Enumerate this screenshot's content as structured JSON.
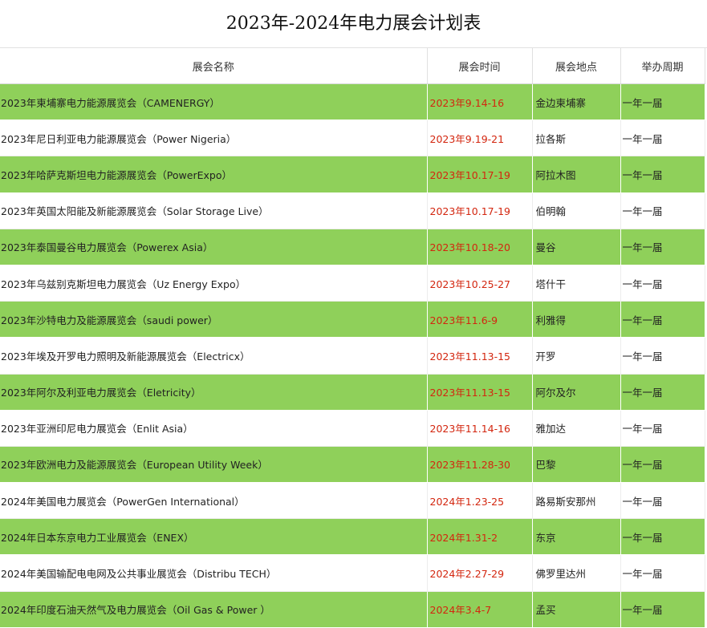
{
  "title": "2023年-2024年电力展会计划表",
  "headers": [
    "展会名称",
    "展会时间",
    "展会地点",
    "举办周期"
  ],
  "colors": {
    "row_green": "#8fd05a",
    "row_white": "#ffffff",
    "date_red": "#d3260f"
  },
  "rows": [
    {
      "name": "2023年柬埔寨电力能源展览会（CAMENERGY）",
      "time": "2023年9.14-16",
      "location": "金边柬埔寨",
      "cycle": "一年一届"
    },
    {
      "name": "2023年尼日利亚电力能源展览会（Power Nigeria）",
      "time": "2023年9.19-21",
      "location": "拉各斯",
      "cycle": "一年一届"
    },
    {
      "name": "2023年哈萨克斯坦电力能源展览会（PowerExpo）",
      "time": "2023年10.17-19",
      "location": "阿拉木图",
      "cycle": "一年一届"
    },
    {
      "name": "2023年英国太阳能及新能源展览会（Solar Storage Live）",
      "time": "2023年10.17-19",
      "location": "伯明翰",
      "cycle": "一年一届"
    },
    {
      "name": "2023年泰国曼谷电力展览会（Powerex Asia）",
      "time": "2023年10.18-20",
      "location": "曼谷",
      "cycle": "一年一届"
    },
    {
      "name": "2023年乌兹别克斯坦电力展览会（Uz Energy Expo）",
      "time": "2023年10.25-27",
      "location": "塔什干",
      "cycle": "一年一届"
    },
    {
      "name": "2023年沙特电力及能源展览会（saudi power）",
      "time": "2023年11.6-9",
      "location": "利雅得",
      "cycle": "一年一届"
    },
    {
      "name": "2023年埃及开罗电力照明及新能源展览会（Electricx）",
      "time": "2023年11.13-15",
      "location": "开罗",
      "cycle": "一年一届"
    },
    {
      "name": "2023年阿尔及利亚电力展览会（Eletricity）",
      "time": "2023年11.13-15",
      "location": "阿尔及尔",
      "cycle": "一年一届"
    },
    {
      "name": "2023年亚洲印尼电力展览会（Enlit Asia）",
      "time": "2023年11.14-16",
      "location": "雅加达",
      "cycle": "一年一届"
    },
    {
      "name": "2023年欧洲电力及能源展览会（European Utility Week）",
      "time": "2023年11.28-30",
      "location": "巴黎",
      "cycle": "一年一届"
    },
    {
      "name": "2024年美国电力展览会（PowerGen International）",
      "time": "2024年1.23-25",
      "location": "路易斯安那州",
      "cycle": "一年一届"
    },
    {
      "name": "2024年日本东京电力工业展览会（ENEX）",
      "time": "2024年1.31-2",
      "location": "东京",
      "cycle": "一年一届"
    },
    {
      "name": "2024年美国输配电电网及公共事业展览会（Distribu TECH）",
      "time": "2024年2.27-29",
      "location": "佛罗里达州",
      "cycle": "一年一届"
    },
    {
      "name": "2024年印度石油天然气及电力展览会（Oil Gas & Power ）",
      "time": "2024年3.4-7",
      "location": "孟买",
      "cycle": "一年一届"
    }
  ]
}
